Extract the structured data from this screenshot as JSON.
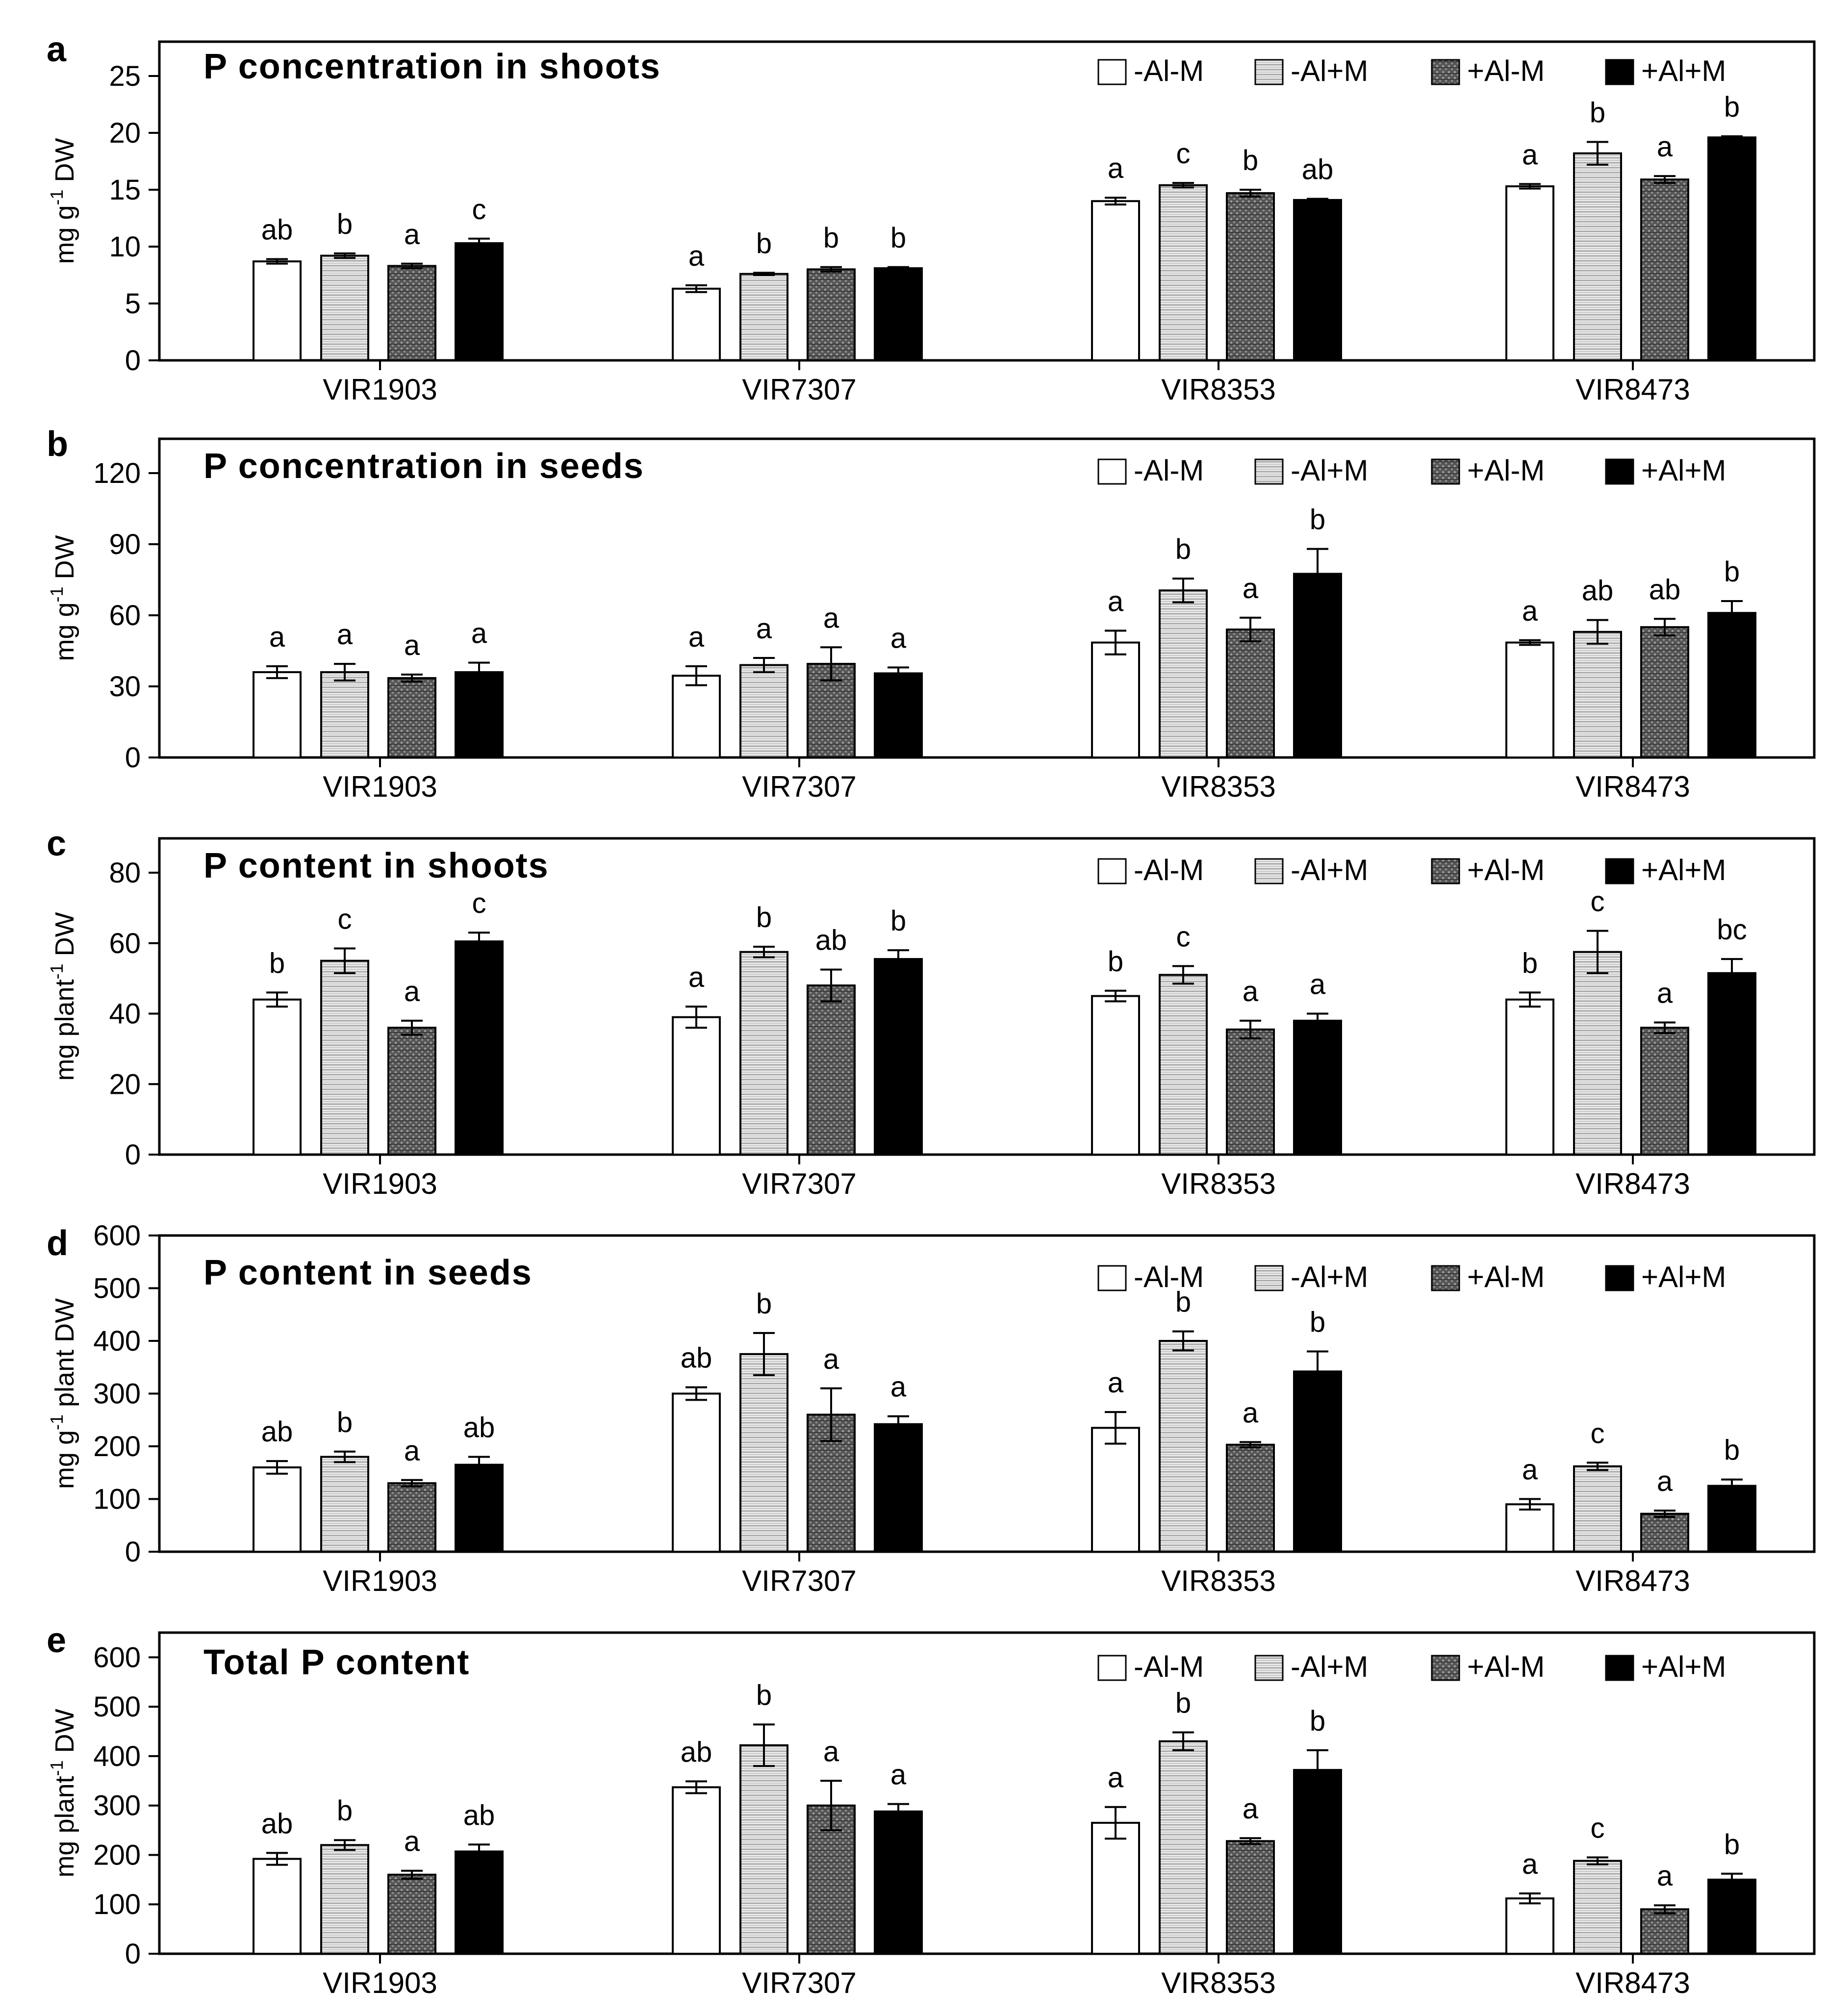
{
  "categories": [
    "VIR1903",
    "VIR7307",
    "VIR8353",
    "VIR8473"
  ],
  "legend": [
    "-Al-M",
    "-Al+M",
    "+Al-M",
    "+Al+M"
  ],
  "colors": {
    "series_0": "#ffffff",
    "series_1": "#d9d9d9",
    "series_2": "#6e6e6e",
    "series_3": "#000000",
    "axis": "#000000"
  },
  "chart_data": [
    {
      "type": "bar",
      "panel_letter": "a",
      "title": "P concentration in shoots",
      "ylabel_main": "mg g",
      "ylabel_sup": "-1",
      "ylabel_tail": " DW",
      "ylim": [
        0,
        25
      ],
      "yticks": [
        0,
        5,
        10,
        15,
        20,
        25
      ],
      "categories": [
        "VIR1903",
        "VIR7307",
        "VIR8353",
        "VIR8473"
      ],
      "series": [
        {
          "name": "-Al-M",
          "values": [
            8.7,
            6.3,
            14.0,
            15.3
          ],
          "errors": [
            0.2,
            0.3,
            0.3,
            0.2
          ],
          "letters": [
            "ab",
            "a",
            "a",
            "a"
          ]
        },
        {
          "name": "-Al+M",
          "values": [
            9.2,
            7.6,
            15.4,
            18.2
          ],
          "errors": [
            0.2,
            0.1,
            0.2,
            1.0
          ],
          "letters": [
            "b",
            "b",
            "c",
            "b"
          ]
        },
        {
          "name": "+Al-M",
          "values": [
            8.3,
            8.0,
            14.7,
            15.9
          ],
          "errors": [
            0.2,
            0.2,
            0.3,
            0.3
          ],
          "letters": [
            "a",
            "b",
            "b",
            "a"
          ]
        },
        {
          "name": "+Al+M",
          "values": [
            10.3,
            8.1,
            14.1,
            19.6
          ],
          "errors": [
            0.4,
            0.1,
            0.1,
            0.1
          ],
          "letters": [
            "c",
            "b",
            "ab",
            "b"
          ]
        }
      ]
    },
    {
      "type": "bar",
      "panel_letter": "b",
      "title": "P concentration in seeds",
      "ylabel_main": "mg g",
      "ylabel_sup": "-1",
      "ylabel_tail": " DW",
      "ylim": [
        0,
        120
      ],
      "yticks": [
        0,
        30,
        60,
        90,
        120
      ],
      "categories": [
        "VIR1903",
        "VIR7307",
        "VIR8353",
        "VIR8473"
      ],
      "series": [
        {
          "name": "-Al-M",
          "values": [
            36,
            34.5,
            48.5,
            48.5
          ],
          "errors": [
            2.5,
            4,
            5,
            1
          ],
          "letters": [
            "a",
            "a",
            "a",
            "a"
          ]
        },
        {
          "name": "-Al+M",
          "values": [
            36,
            39,
            70.5,
            53
          ],
          "errors": [
            3.5,
            3,
            5,
            5
          ],
          "letters": [
            "a",
            "a",
            "b",
            "ab"
          ]
        },
        {
          "name": "+Al-M",
          "values": [
            33.5,
            39.5,
            54,
            55
          ],
          "errors": [
            1.5,
            7,
            5,
            3.5
          ],
          "letters": [
            "a",
            "a",
            "a",
            "ab"
          ]
        },
        {
          "name": "+Al+M",
          "values": [
            36,
            35.5,
            77.5,
            61
          ],
          "errors": [
            4,
            2.5,
            10.5,
            5
          ],
          "letters": [
            "a",
            "a",
            "b",
            "b"
          ]
        }
      ]
    },
    {
      "type": "bar",
      "panel_letter": "c",
      "title": "P content in shoots",
      "ylabel_main": "mg plant",
      "ylabel_sup": "-1",
      "ylabel_tail": " DW",
      "ylim": [
        0,
        80
      ],
      "yticks": [
        0,
        20,
        40,
        60,
        80
      ],
      "categories": [
        "VIR1903",
        "VIR7307",
        "VIR8353",
        "VIR8473"
      ],
      "series": [
        {
          "name": "-Al-M",
          "values": [
            44,
            39,
            45,
            44
          ],
          "errors": [
            2,
            3,
            1.5,
            2
          ],
          "letters": [
            "b",
            "a",
            "b",
            "b"
          ]
        },
        {
          "name": "-Al+M",
          "values": [
            55,
            57.5,
            51,
            57.5
          ],
          "errors": [
            3.5,
            1.5,
            2.5,
            6
          ],
          "letters": [
            "c",
            "b",
            "c",
            "c"
          ]
        },
        {
          "name": "+Al-M",
          "values": [
            36,
            48,
            35.5,
            36
          ],
          "errors": [
            2,
            4.5,
            2.5,
            1.5
          ],
          "letters": [
            "a",
            "ab",
            "a",
            "a"
          ]
        },
        {
          "name": "+Al+M",
          "values": [
            60.5,
            55.5,
            38,
            51.5
          ],
          "errors": [
            2.5,
            2.5,
            2,
            4
          ],
          "letters": [
            "c",
            "b",
            "a",
            "bc"
          ]
        }
      ]
    },
    {
      "type": "bar",
      "panel_letter": "d",
      "title": "P content in seeds",
      "ylabel_main": "mg g",
      "ylabel_sup": "-1",
      "ylabel_tail": " plant DW",
      "ylim": [
        0,
        600
      ],
      "yticks": [
        0,
        100,
        200,
        300,
        400,
        500,
        600
      ],
      "categories": [
        "VIR1903",
        "VIR7307",
        "VIR8353",
        "VIR8473"
      ],
      "series": [
        {
          "name": "-Al-M",
          "values": [
            160,
            300,
            235,
            90
          ],
          "errors": [
            12,
            12,
            30,
            10
          ],
          "letters": [
            "ab",
            "ab",
            "a",
            "a"
          ]
        },
        {
          "name": "-Al+M",
          "values": [
            180,
            375,
            400,
            162
          ],
          "errors": [
            10,
            40,
            18,
            7
          ],
          "letters": [
            "b",
            "b",
            "b",
            "c"
          ]
        },
        {
          "name": "+Al-M",
          "values": [
            130,
            260,
            203,
            72
          ],
          "errors": [
            6,
            50,
            5,
            6
          ],
          "letters": [
            "a",
            "a",
            "a",
            "a"
          ]
        },
        {
          "name": "+Al+M",
          "values": [
            165,
            242,
            342,
            125
          ],
          "errors": [
            15,
            15,
            38,
            12
          ],
          "letters": [
            "ab",
            "a",
            "b",
            "b"
          ]
        }
      ]
    },
    {
      "type": "bar",
      "panel_letter": "e",
      "title": "Total P content",
      "ylabel_main": "mg plant",
      "ylabel_sup": "-1",
      "ylabel_tail": " DW",
      "ylim": [
        0,
        650
      ],
      "yticks": [
        0,
        100,
        200,
        300,
        400,
        500,
        600
      ],
      "categories": [
        "VIR1903",
        "VIR7307",
        "VIR8353",
        "VIR8473"
      ],
      "series": [
        {
          "name": "-Al-M",
          "values": [
            192,
            337,
            265,
            112
          ],
          "errors": [
            12,
            12,
            32,
            10
          ],
          "letters": [
            "ab",
            "ab",
            "a",
            "a"
          ]
        },
        {
          "name": "-Al+M",
          "values": [
            220,
            422,
            430,
            188
          ],
          "errors": [
            10,
            42,
            18,
            7
          ],
          "letters": [
            "b",
            "b",
            "b",
            "c"
          ]
        },
        {
          "name": "+Al-M",
          "values": [
            160,
            300,
            228,
            90
          ],
          "errors": [
            8,
            50,
            6,
            8
          ],
          "letters": [
            "a",
            "a",
            "a",
            "a"
          ]
        },
        {
          "name": "+Al+M",
          "values": [
            207,
            288,
            372,
            150
          ],
          "errors": [
            14,
            15,
            40,
            12
          ],
          "letters": [
            "ab",
            "a",
            "b",
            "b"
          ]
        }
      ]
    }
  ]
}
